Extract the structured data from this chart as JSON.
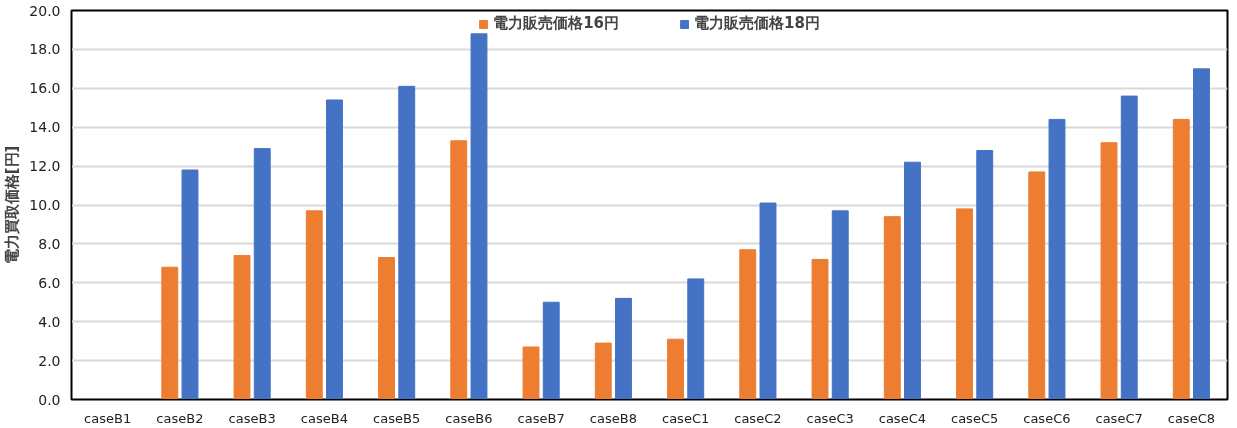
{
  "chart_data": {
    "type": "bar",
    "ylabel": "電力買取価格[円]",
    "categories": [
      "caseB1",
      "caseB2",
      "caseB3",
      "caseB4",
      "caseB5",
      "caseB6",
      "caseB7",
      "caseB8",
      "caseC1",
      "caseC2",
      "caseC3",
      "caseC4",
      "caseC5",
      "caseC6",
      "caseC7",
      "caseC8"
    ],
    "series": [
      {
        "name": "電力販売価格16円",
        "color": "#ed7d31",
        "values": [
          null,
          6.8,
          7.4,
          9.7,
          7.3,
          13.3,
          2.7,
          2.9,
          3.1,
          7.7,
          7.2,
          9.4,
          9.8,
          11.7,
          13.2,
          14.4
        ]
      },
      {
        "name": "電力販売価格18円",
        "color": "#4472c4",
        "values": [
          null,
          11.8,
          12.9,
          15.4,
          16.1,
          18.8,
          5.0,
          5.2,
          6.2,
          10.1,
          9.7,
          12.2,
          12.8,
          14.4,
          15.6,
          17.0
        ]
      }
    ],
    "ylim": [
      0,
      20
    ],
    "yticks": [
      {
        "value": 0,
        "label": "0.0"
      },
      {
        "value": 2,
        "label": "2.0"
      },
      {
        "value": 4,
        "label": "4.0"
      },
      {
        "value": 6,
        "label": "6.0"
      },
      {
        "value": 8,
        "label": "8.0"
      },
      {
        "value": 10,
        "label": "10.0"
      },
      {
        "value": 12,
        "label": "12.0"
      },
      {
        "value": 14,
        "label": "14.0"
      },
      {
        "value": 16,
        "label": "16.0"
      },
      {
        "value": 18,
        "label": "18.0"
      },
      {
        "value": 20,
        "label": "20.0"
      }
    ],
    "grid": "y",
    "legend": "top"
  }
}
